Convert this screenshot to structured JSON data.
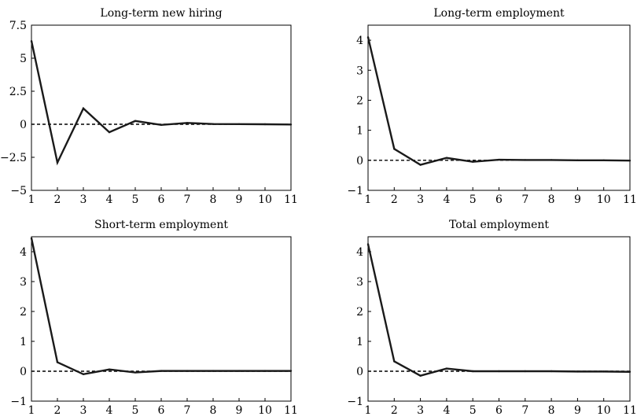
{
  "chart_data": [
    {
      "type": "line",
      "title": "Long-term new hiring",
      "x": [
        1,
        2,
        3,
        4,
        5,
        6,
        7,
        8,
        9,
        10,
        11
      ],
      "series": [
        {
          "values": [
            6.3,
            -2.9,
            1.2,
            -0.6,
            0.25,
            -0.05,
            0.1,
            0.02,
            0.01,
            0.0,
            -0.02
          ]
        }
      ],
      "reference_line": {
        "y": 0,
        "style": "dashed"
      },
      "xlim": [
        1,
        11
      ],
      "ylim": [
        -5,
        7.5
      ],
      "xticks": [
        1,
        2,
        3,
        4,
        5,
        6,
        7,
        8,
        9,
        10,
        11
      ],
      "yticks": [
        -5,
        -2.5,
        0,
        2.5,
        5,
        7.5
      ],
      "ytick_labels": [
        "−5",
        "−2.5",
        "0",
        "2.5",
        "5",
        "7.5"
      ],
      "grid": false,
      "color": "#1a1a1a"
    },
    {
      "type": "line",
      "title": "Long-term employment",
      "x": [
        1,
        2,
        3,
        4,
        5,
        6,
        7,
        8,
        9,
        10,
        11
      ],
      "series": [
        {
          "values": [
            4.1,
            0.38,
            -0.15,
            0.08,
            -0.05,
            0.02,
            0.01,
            0.01,
            0.0,
            0.0,
            -0.01
          ]
        }
      ],
      "reference_line": {
        "y": 0,
        "style": "dashed"
      },
      "xlim": [
        1,
        11
      ],
      "ylim": [
        -1,
        4.5
      ],
      "xticks": [
        1,
        2,
        3,
        4,
        5,
        6,
        7,
        8,
        9,
        10,
        11
      ],
      "yticks": [
        -1,
        0,
        1,
        2,
        3,
        4
      ],
      "ytick_labels": [
        "−1",
        "0",
        "1",
        "2",
        "3",
        "4"
      ],
      "grid": false,
      "color": "#1a1a1a"
    },
    {
      "type": "line",
      "title": "Short-term employment",
      "x": [
        1,
        2,
        3,
        4,
        5,
        6,
        7,
        8,
        9,
        10,
        11
      ],
      "series": [
        {
          "values": [
            4.45,
            0.3,
            -0.1,
            0.06,
            -0.04,
            0.01,
            0.01,
            0.01,
            0.01,
            0.01,
            0.01
          ]
        }
      ],
      "reference_line": {
        "y": 0,
        "style": "dashed"
      },
      "xlim": [
        1,
        11
      ],
      "ylim": [
        -1,
        4.5
      ],
      "xticks": [
        1,
        2,
        3,
        4,
        5,
        6,
        7,
        8,
        9,
        10,
        11
      ],
      "yticks": [
        -1,
        0,
        1,
        2,
        3,
        4
      ],
      "ytick_labels": [
        "−1",
        "0",
        "1",
        "2",
        "3",
        "4"
      ],
      "grid": false,
      "color": "#1a1a1a"
    },
    {
      "type": "line",
      "title": "Total employment",
      "x": [
        1,
        2,
        3,
        4,
        5,
        6,
        7,
        8,
        9,
        10,
        11
      ],
      "series": [
        {
          "values": [
            4.25,
            0.33,
            -0.15,
            0.09,
            0.0,
            0.0,
            0.0,
            0.0,
            -0.01,
            -0.01,
            -0.02
          ]
        }
      ],
      "reference_line": {
        "y": 0,
        "style": "dashed"
      },
      "xlim": [
        1,
        11
      ],
      "ylim": [
        -1,
        4.5
      ],
      "xticks": [
        1,
        2,
        3,
        4,
        5,
        6,
        7,
        8,
        9,
        10,
        11
      ],
      "yticks": [
        -1,
        0,
        1,
        2,
        3,
        4
      ],
      "ytick_labels": [
        "−1",
        "0",
        "1",
        "2",
        "3",
        "4"
      ],
      "grid": false,
      "color": "#1a1a1a"
    }
  ]
}
